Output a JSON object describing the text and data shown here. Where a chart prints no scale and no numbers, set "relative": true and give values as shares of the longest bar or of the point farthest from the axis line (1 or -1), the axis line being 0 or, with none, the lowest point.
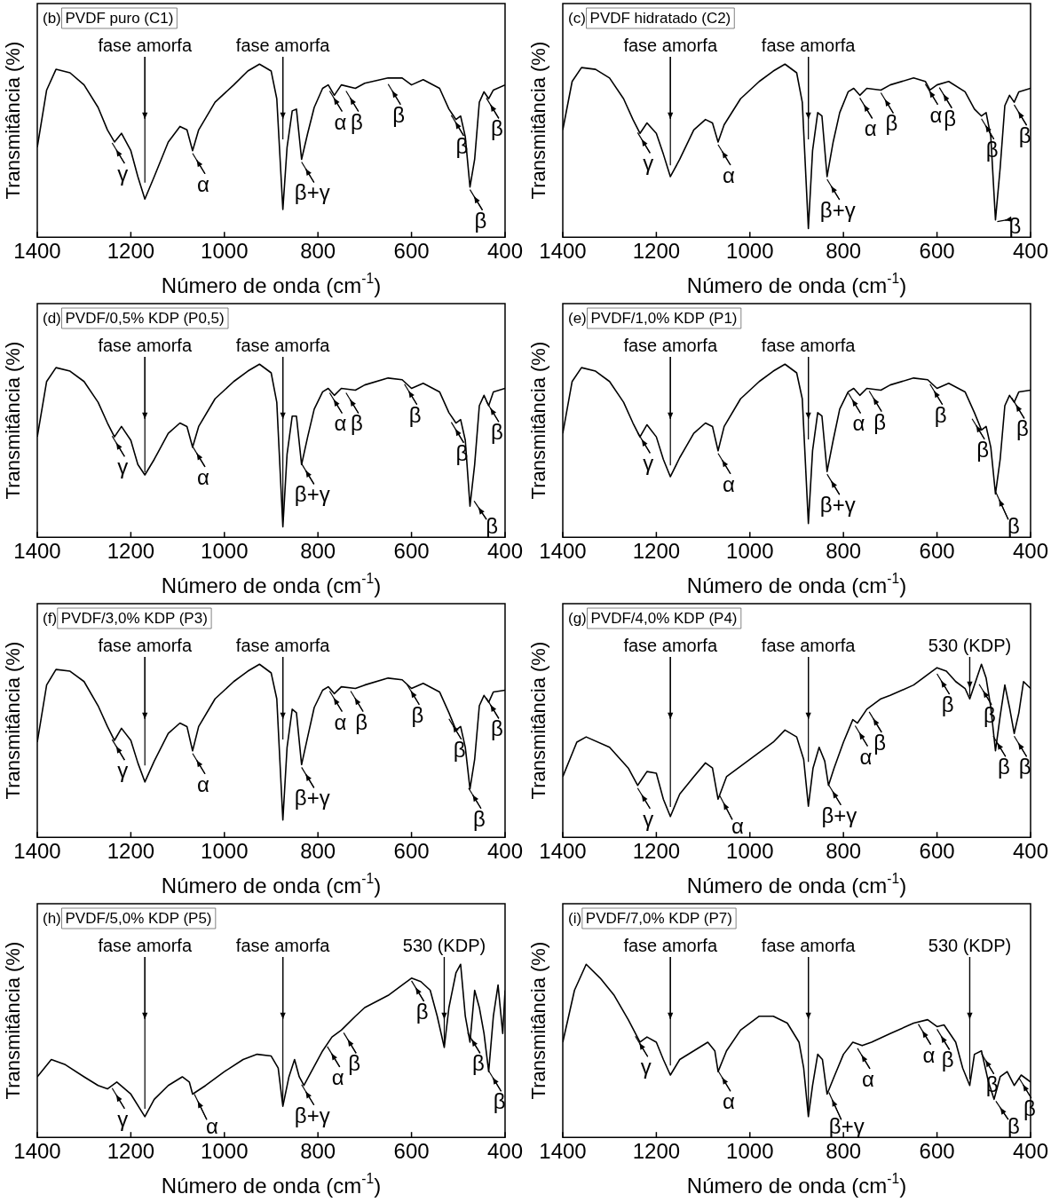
{
  "chart_data": [
    {
      "type": "line",
      "title": "(b) PVDF puro (C1)",
      "xlabel": "Número de onda (cm$^{-1}$)",
      "ylabel": "Transmitância (%)",
      "relative": true,
      "xlim": [
        1400,
        400
      ],
      "xticks": [
        1400,
        1200,
        1000,
        800,
        600,
        400
      ],
      "legend": false,
      "x": [
        1400,
        1380,
        1360,
        1330,
        1300,
        1270,
        1250,
        1235,
        1220,
        1200,
        1185,
        1170,
        1150,
        1120,
        1095,
        1080,
        1068,
        1055,
        1020,
        980,
        950,
        925,
        900,
        888,
        875,
        866,
        855,
        846,
        835,
        822,
        808,
        790,
        778,
        765,
        750,
        720,
        700,
        650,
        620,
        600,
        575,
        540,
        520,
        505,
        495,
        485,
        475,
        465,
        455,
        445,
        435,
        425,
        400
      ],
      "series": [
        {
          "color": "#000000",
          "values": [
            0.52,
            0.85,
            0.97,
            0.95,
            0.88,
            0.75,
            0.62,
            0.55,
            0.6,
            0.5,
            0.35,
            0.22,
            0.35,
            0.55,
            0.64,
            0.62,
            0.5,
            0.62,
            0.78,
            0.88,
            0.96,
            1.0,
            0.96,
            0.8,
            0.16,
            0.52,
            0.73,
            0.74,
            0.45,
            0.6,
            0.75,
            0.86,
            0.88,
            0.82,
            0.88,
            0.86,
            0.89,
            0.92,
            0.92,
            0.88,
            0.91,
            0.86,
            0.74,
            0.68,
            0.7,
            0.58,
            0.29,
            0.45,
            0.78,
            0.84,
            0.8,
            0.85,
            0.88
          ]
        }
      ],
      "annotations": [
        {
          "text": "γ",
          "x": 1240,
          "y": 0.56
        },
        {
          "text": "fase amorfa",
          "x": 1170,
          "y": 0.3
        },
        {
          "text": "α",
          "x": 1068,
          "y": 0.5
        },
        {
          "text": "fase amorfa",
          "x": 875,
          "y": 0.55
        },
        {
          "text": "β+γ",
          "x": 835,
          "y": 0.45
        },
        {
          "text": "α",
          "x": 775,
          "y": 0.86
        },
        {
          "text": "β",
          "x": 740,
          "y": 0.86
        },
        {
          "text": "β",
          "x": 650,
          "y": 0.9
        },
        {
          "text": "β",
          "x": 515,
          "y": 0.72
        },
        {
          "text": "β",
          "x": 475,
          "y": 0.29
        },
        {
          "text": "β",
          "x": 440,
          "y": 0.82
        }
      ]
    },
    {
      "type": "line",
      "title": "(c) PVDF hidratado (C2)",
      "xlabel": "Número de onda (cm$^{-1}$)",
      "ylabel": "Transmitância (%)",
      "relative": true,
      "xlim": [
        1400,
        400
      ],
      "xticks": [
        1400,
        1200,
        1000,
        800,
        600,
        400
      ],
      "legend": false,
      "x": [
        1400,
        1380,
        1360,
        1330,
        1300,
        1270,
        1250,
        1235,
        1220,
        1200,
        1185,
        1170,
        1150,
        1120,
        1095,
        1080,
        1068,
        1055,
        1020,
        980,
        950,
        925,
        900,
        888,
        875,
        866,
        855,
        846,
        835,
        822,
        808,
        790,
        778,
        765,
        750,
        720,
        700,
        650,
        625,
        615,
        600,
        575,
        540,
        520,
        505,
        495,
        485,
        475,
        465,
        455,
        445,
        435,
        425,
        400
      ],
      "series": [
        {
          "color": "#000000",
          "values": [
            0.62,
            0.9,
            0.98,
            0.97,
            0.92,
            0.8,
            0.68,
            0.6,
            0.66,
            0.6,
            0.48,
            0.35,
            0.45,
            0.62,
            0.68,
            0.66,
            0.55,
            0.65,
            0.8,
            0.9,
            0.96,
            1.0,
            0.95,
            0.78,
            0.05,
            0.5,
            0.72,
            0.7,
            0.35,
            0.55,
            0.72,
            0.84,
            0.86,
            0.82,
            0.86,
            0.85,
            0.88,
            0.92,
            0.9,
            0.85,
            0.88,
            0.9,
            0.84,
            0.74,
            0.7,
            0.72,
            0.58,
            0.1,
            0.4,
            0.76,
            0.82,
            0.78,
            0.84,
            0.86
          ]
        }
      ],
      "annotations": [
        {
          "text": "γ",
          "x": 1240,
          "y": 0.62
        },
        {
          "text": "fase amorfa",
          "x": 1170,
          "y": 0.4
        },
        {
          "text": "α",
          "x": 1068,
          "y": 0.55
        },
        {
          "text": "fase amorfa",
          "x": 875,
          "y": 0.55
        },
        {
          "text": "β+γ",
          "x": 835,
          "y": 0.35
        },
        {
          "text": "α",
          "x": 765,
          "y": 0.82
        },
        {
          "text": "β",
          "x": 720,
          "y": 0.85
        },
        {
          "text": "α",
          "x": 625,
          "y": 0.9
        },
        {
          "text": "β",
          "x": 595,
          "y": 0.88
        },
        {
          "text": "β",
          "x": 505,
          "y": 0.7
        },
        {
          "text": "β",
          "x": 475,
          "y": 0.1
        },
        {
          "text": "β",
          "x": 435,
          "y": 0.78
        }
      ]
    },
    {
      "type": "line",
      "title": "(d) PVDF/0,5% KDP (P0,5)",
      "xlabel": "Número de onda (cm$^{-1}$)",
      "ylabel": "Transmitância (%)",
      "relative": true,
      "xlim": [
        1400,
        400
      ],
      "xticks": [
        1400,
        1200,
        1000,
        800,
        600,
        400
      ],
      "legend": false,
      "x": [
        1400,
        1380,
        1360,
        1330,
        1300,
        1270,
        1250,
        1235,
        1220,
        1200,
        1185,
        1170,
        1150,
        1120,
        1095,
        1080,
        1068,
        1055,
        1020,
        980,
        950,
        925,
        900,
        888,
        875,
        866,
        855,
        846,
        835,
        822,
        808,
        790,
        778,
        765,
        750,
        720,
        700,
        650,
        620,
        600,
        575,
        540,
        520,
        505,
        495,
        485,
        475,
        465,
        455,
        445,
        435,
        425,
        400
      ],
      "series": [
        {
          "color": "#000000",
          "values": [
            0.58,
            0.9,
            0.98,
            0.96,
            0.9,
            0.78,
            0.66,
            0.58,
            0.64,
            0.56,
            0.42,
            0.36,
            0.45,
            0.6,
            0.66,
            0.64,
            0.52,
            0.64,
            0.8,
            0.9,
            0.96,
            1.0,
            0.95,
            0.78,
            0.06,
            0.48,
            0.7,
            0.7,
            0.42,
            0.58,
            0.74,
            0.84,
            0.86,
            0.82,
            0.86,
            0.85,
            0.88,
            0.92,
            0.91,
            0.86,
            0.89,
            0.84,
            0.72,
            0.66,
            0.68,
            0.56,
            0.18,
            0.42,
            0.76,
            0.82,
            0.76,
            0.84,
            0.86
          ]
        }
      ],
      "annotations": [
        {
          "text": "γ",
          "x": 1240,
          "y": 0.6
        },
        {
          "text": "fase amorfa",
          "x": 1170,
          "y": 0.36
        },
        {
          "text": "α",
          "x": 1068,
          "y": 0.54
        },
        {
          "text": "fase amorfa",
          "x": 875,
          "y": 0.1
        },
        {
          "text": "β+γ",
          "x": 835,
          "y": 0.44
        },
        {
          "text": "α",
          "x": 775,
          "y": 0.85
        },
        {
          "text": "β",
          "x": 740,
          "y": 0.85
        },
        {
          "text": "β",
          "x": 615,
          "y": 0.9
        },
        {
          "text": "β",
          "x": 515,
          "y": 0.68
        },
        {
          "text": "β",
          "x": 470,
          "y": 0.22
        },
        {
          "text": "β",
          "x": 440,
          "y": 0.8
        }
      ]
    },
    {
      "type": "line",
      "title": "(e) PVDF/1,0% KDP (P1)",
      "xlabel": "Número de onda (cm$^{-1}$)",
      "ylabel": "Transmitância (%)",
      "relative": true,
      "xlim": [
        1400,
        400
      ],
      "xticks": [
        1400,
        1200,
        1000,
        800,
        600,
        400
      ],
      "legend": false,
      "x": [
        1400,
        1380,
        1360,
        1330,
        1300,
        1270,
        1250,
        1235,
        1220,
        1200,
        1185,
        1170,
        1150,
        1120,
        1095,
        1080,
        1068,
        1055,
        1020,
        980,
        950,
        925,
        900,
        888,
        875,
        866,
        855,
        846,
        835,
        822,
        808,
        790,
        778,
        765,
        750,
        720,
        700,
        650,
        620,
        600,
        575,
        540,
        520,
        505,
        495,
        485,
        475,
        465,
        455,
        445,
        435,
        425,
        400
      ],
      "series": [
        {
          "color": "#000000",
          "values": [
            0.6,
            0.9,
            0.98,
            0.96,
            0.9,
            0.78,
            0.66,
            0.58,
            0.65,
            0.58,
            0.45,
            0.35,
            0.46,
            0.6,
            0.66,
            0.64,
            0.5,
            0.64,
            0.8,
            0.9,
            0.96,
            1.0,
            0.95,
            0.8,
            0.08,
            0.5,
            0.72,
            0.7,
            0.38,
            0.56,
            0.74,
            0.84,
            0.86,
            0.82,
            0.86,
            0.85,
            0.88,
            0.92,
            0.91,
            0.86,
            0.89,
            0.84,
            0.72,
            0.62,
            0.64,
            0.52,
            0.25,
            0.45,
            0.76,
            0.82,
            0.78,
            0.84,
            0.85
          ]
        }
      ],
      "annotations": [
        {
          "text": "γ",
          "x": 1240,
          "y": 0.62
        },
        {
          "text": "fase amorfa",
          "x": 1170,
          "y": 0.4
        },
        {
          "text": "α",
          "x": 1068,
          "y": 0.5
        },
        {
          "text": "fase amorfa",
          "x": 875,
          "y": 0.55
        },
        {
          "text": "β+γ",
          "x": 835,
          "y": 0.38
        },
        {
          "text": "α",
          "x": 790,
          "y": 0.85
        },
        {
          "text": "β",
          "x": 745,
          "y": 0.86
        },
        {
          "text": "β",
          "x": 615,
          "y": 0.9
        },
        {
          "text": "β",
          "x": 525,
          "y": 0.7
        },
        {
          "text": "β",
          "x": 478,
          "y": 0.27
        },
        {
          "text": "β",
          "x": 440,
          "y": 0.82
        }
      ]
    },
    {
      "type": "line",
      "title": "(f) PVDF/3,0% KDP (P3)",
      "xlabel": "Número de onda (cm$^{-1}$)",
      "ylabel": "Transmitância (%)",
      "relative": true,
      "xlim": [
        1400,
        400
      ],
      "xticks": [
        1400,
        1200,
        1000,
        800,
        600,
        400
      ],
      "legend": false,
      "x": [
        1400,
        1380,
        1360,
        1330,
        1300,
        1270,
        1250,
        1235,
        1220,
        1200,
        1185,
        1170,
        1150,
        1120,
        1095,
        1080,
        1068,
        1055,
        1020,
        980,
        950,
        925,
        900,
        888,
        875,
        866,
        855,
        846,
        835,
        822,
        808,
        790,
        778,
        765,
        750,
        720,
        700,
        650,
        620,
        600,
        575,
        540,
        520,
        505,
        495,
        485,
        475,
        465,
        455,
        445,
        435,
        425,
        400
      ],
      "series": [
        {
          "color": "#000000",
          "values": [
            0.55,
            0.88,
            0.97,
            0.96,
            0.9,
            0.76,
            0.64,
            0.56,
            0.63,
            0.56,
            0.43,
            0.32,
            0.44,
            0.6,
            0.66,
            0.64,
            0.5,
            0.64,
            0.8,
            0.9,
            0.96,
            1.0,
            0.95,
            0.8,
            0.1,
            0.52,
            0.74,
            0.72,
            0.42,
            0.58,
            0.75,
            0.85,
            0.87,
            0.83,
            0.87,
            0.86,
            0.88,
            0.92,
            0.91,
            0.86,
            0.89,
            0.84,
            0.72,
            0.62,
            0.64,
            0.52,
            0.28,
            0.45,
            0.76,
            0.82,
            0.78,
            0.84,
            0.85
          ]
        }
      ],
      "annotations": [
        {
          "text": "γ",
          "x": 1240,
          "y": 0.58
        },
        {
          "text": "fase amorfa",
          "x": 1170,
          "y": 0.4
        },
        {
          "text": "α",
          "x": 1068,
          "y": 0.5
        },
        {
          "text": "fase amorfa",
          "x": 875,
          "y": 0.55
        },
        {
          "text": "β+γ",
          "x": 835,
          "y": 0.42
        },
        {
          "text": "α",
          "x": 775,
          "y": 0.86
        },
        {
          "text": "β",
          "x": 730,
          "y": 0.86
        },
        {
          "text": "β",
          "x": 610,
          "y": 0.9
        },
        {
          "text": "β",
          "x": 520,
          "y": 0.7
        },
        {
          "text": "β",
          "x": 478,
          "y": 0.3
        },
        {
          "text": "β",
          "x": 440,
          "y": 0.82
        }
      ]
    },
    {
      "type": "line",
      "title": "(g) PVDF/4,0% KDP (P4)",
      "xlabel": "Número de onda (cm$^{-1}$)",
      "ylabel": "Transmitância (%)",
      "relative": true,
      "xlim": [
        1400,
        400
      ],
      "xticks": [
        1400,
        1200,
        1000,
        800,
        600,
        400
      ],
      "legend": false,
      "x": [
        1400,
        1370,
        1350,
        1300,
        1260,
        1240,
        1220,
        1200,
        1185,
        1170,
        1150,
        1120,
        1095,
        1080,
        1068,
        1050,
        1000,
        950,
        925,
        900,
        885,
        875,
        865,
        852,
        840,
        832,
        820,
        800,
        780,
        770,
        750,
        720,
        700,
        650,
        620,
        600,
        580,
        560,
        540,
        530,
        520,
        505,
        495,
        485,
        475,
        465,
        455,
        445,
        435,
        425,
        415,
        400
      ],
      "series": [
        {
          "color": "#000000",
          "values": [
            0.35,
            0.55,
            0.58,
            0.52,
            0.4,
            0.3,
            0.38,
            0.37,
            0.22,
            0.12,
            0.25,
            0.35,
            0.43,
            0.4,
            0.22,
            0.35,
            0.45,
            0.55,
            0.62,
            0.58,
            0.45,
            0.18,
            0.4,
            0.52,
            0.44,
            0.3,
            0.4,
            0.55,
            0.68,
            0.66,
            0.74,
            0.8,
            0.82,
            0.88,
            0.94,
            0.98,
            0.96,
            0.9,
            0.86,
            0.8,
            0.88,
            1.0,
            0.92,
            0.75,
            0.5,
            0.7,
            0.88,
            0.75,
            0.6,
            0.72,
            0.9,
            0.86
          ]
        }
      ],
      "annotations": [
        {
          "text": "γ",
          "x": 1240,
          "y": 0.3
        },
        {
          "text": "fase amorfa",
          "x": 1170,
          "y": 0.16
        },
        {
          "text": "α",
          "x": 1068,
          "y": 0.25
        },
        {
          "text": "fase amorfa",
          "x": 875,
          "y": 0.42
        },
        {
          "text": "β+γ",
          "x": 832,
          "y": 0.32
        },
        {
          "text": "α",
          "x": 775,
          "y": 0.66
        },
        {
          "text": "β",
          "x": 745,
          "y": 0.74
        },
        {
          "text": "β",
          "x": 600,
          "y": 0.96
        },
        {
          "text": "530 (KDP)",
          "x": 530,
          "y": 0.8
        },
        {
          "text": "β",
          "x": 510,
          "y": 0.9
        },
        {
          "text": "β",
          "x": 480,
          "y": 0.6
        },
        {
          "text": "β",
          "x": 435,
          "y": 0.6
        }
      ]
    },
    {
      "type": "line",
      "title": "(h) PVDF/5,0% KDP (P5)",
      "xlabel": "Número de onda (cm$^{-1}$)",
      "ylabel": "Transmitância (%)",
      "relative": true,
      "xlim": [
        1400,
        400
      ],
      "xticks": [
        1400,
        1200,
        1000,
        800,
        600,
        400
      ],
      "legend": false,
      "x": [
        1400,
        1370,
        1340,
        1300,
        1270,
        1250,
        1230,
        1200,
        1170,
        1150,
        1120,
        1090,
        1075,
        1068,
        1040,
        1000,
        960,
        930,
        900,
        885,
        875,
        862,
        850,
        840,
        830,
        810,
        790,
        770,
        750,
        720,
        700,
        650,
        620,
        600,
        580,
        560,
        545,
        530,
        520,
        505,
        495,
        485,
        475,
        465,
        455,
        445,
        435,
        425,
        415,
        405,
        400
      ],
      "series": [
        {
          "color": "#000000",
          "values": [
            0.35,
            0.45,
            0.42,
            0.35,
            0.3,
            0.28,
            0.32,
            0.25,
            0.12,
            0.22,
            0.3,
            0.35,
            0.32,
            0.25,
            0.3,
            0.38,
            0.45,
            0.48,
            0.47,
            0.4,
            0.18,
            0.35,
            0.45,
            0.35,
            0.3,
            0.4,
            0.5,
            0.58,
            0.62,
            0.7,
            0.75,
            0.82,
            0.88,
            0.92,
            0.9,
            0.85,
            0.7,
            0.52,
            0.75,
            0.95,
            1.0,
            0.7,
            0.55,
            0.85,
            0.75,
            0.6,
            0.38,
            0.7,
            0.88,
            0.6,
            0.85
          ]
        }
      ],
      "annotations": [
        {
          "text": "γ",
          "x": 1240,
          "y": 0.3
        },
        {
          "text": "fase amorfa",
          "x": 1170,
          "y": 0.15
        },
        {
          "text": "α",
          "x": 1068,
          "y": 0.26
        },
        {
          "text": "fase amorfa",
          "x": 875,
          "y": 0.18
        },
        {
          "text": "β+γ",
          "x": 835,
          "y": 0.32
        },
        {
          "text": "α",
          "x": 780,
          "y": 0.54
        },
        {
          "text": "β",
          "x": 745,
          "y": 0.62
        },
        {
          "text": "β",
          "x": 600,
          "y": 0.92
        },
        {
          "text": "530 (KDP)",
          "x": 530,
          "y": 0.52
        },
        {
          "text": "β",
          "x": 480,
          "y": 0.62
        },
        {
          "text": "β",
          "x": 435,
          "y": 0.4
        }
      ]
    },
    {
      "type": "line",
      "title": "(i) PVDF/7,0% KDP (P7)",
      "xlabel": "Número de onda (cm$^{-1}$)",
      "ylabel": "Transmitância (%)",
      "relative": true,
      "xlim": [
        1400,
        400
      ],
      "xticks": [
        1400,
        1200,
        1000,
        800,
        600,
        400
      ],
      "legend": false,
      "x": [
        1400,
        1375,
        1350,
        1320,
        1290,
        1260,
        1235,
        1220,
        1200,
        1185,
        1170,
        1150,
        1120,
        1090,
        1075,
        1068,
        1050,
        1020,
        980,
        950,
        920,
        895,
        885,
        875,
        866,
        855,
        845,
        835,
        820,
        800,
        780,
        760,
        740,
        700,
        650,
        620,
        600,
        585,
        560,
        545,
        530,
        520,
        505,
        490,
        478,
        465,
        450,
        435,
        420,
        400
      ],
      "series": [
        {
          "color": "#000000",
          "values": [
            0.55,
            0.85,
            1.0,
            0.92,
            0.82,
            0.68,
            0.55,
            0.58,
            0.55,
            0.45,
            0.36,
            0.45,
            0.5,
            0.55,
            0.5,
            0.38,
            0.5,
            0.62,
            0.7,
            0.7,
            0.66,
            0.55,
            0.4,
            0.12,
            0.3,
            0.48,
            0.45,
            0.25,
            0.35,
            0.48,
            0.55,
            0.53,
            0.55,
            0.6,
            0.66,
            0.68,
            0.64,
            0.65,
            0.55,
            0.4,
            0.3,
            0.48,
            0.5,
            0.32,
            0.22,
            0.35,
            0.38,
            0.3,
            0.36,
            0.32
          ]
        }
      ],
      "annotations": [
        {
          "text": "γ",
          "x": 1245,
          "y": 0.6
        },
        {
          "text": "fase amorfa",
          "x": 1170,
          "y": 0.4
        },
        {
          "text": "α",
          "x": 1068,
          "y": 0.4
        },
        {
          "text": "fase amorfa",
          "x": 875,
          "y": 0.14
        },
        {
          "text": "β+γ",
          "x": 835,
          "y": 0.27
        },
        {
          "text": "α",
          "x": 770,
          "y": 0.53
        },
        {
          "text": "α",
          "x": 640,
          "y": 0.67
        },
        {
          "text": "β",
          "x": 600,
          "y": 0.64
        },
        {
          "text": "530 (KDP)",
          "x": 530,
          "y": 0.32
        },
        {
          "text": "β",
          "x": 505,
          "y": 0.5
        },
        {
          "text": "β",
          "x": 478,
          "y": 0.22
        },
        {
          "text": "β",
          "x": 425,
          "y": 0.36
        }
      ]
    }
  ]
}
